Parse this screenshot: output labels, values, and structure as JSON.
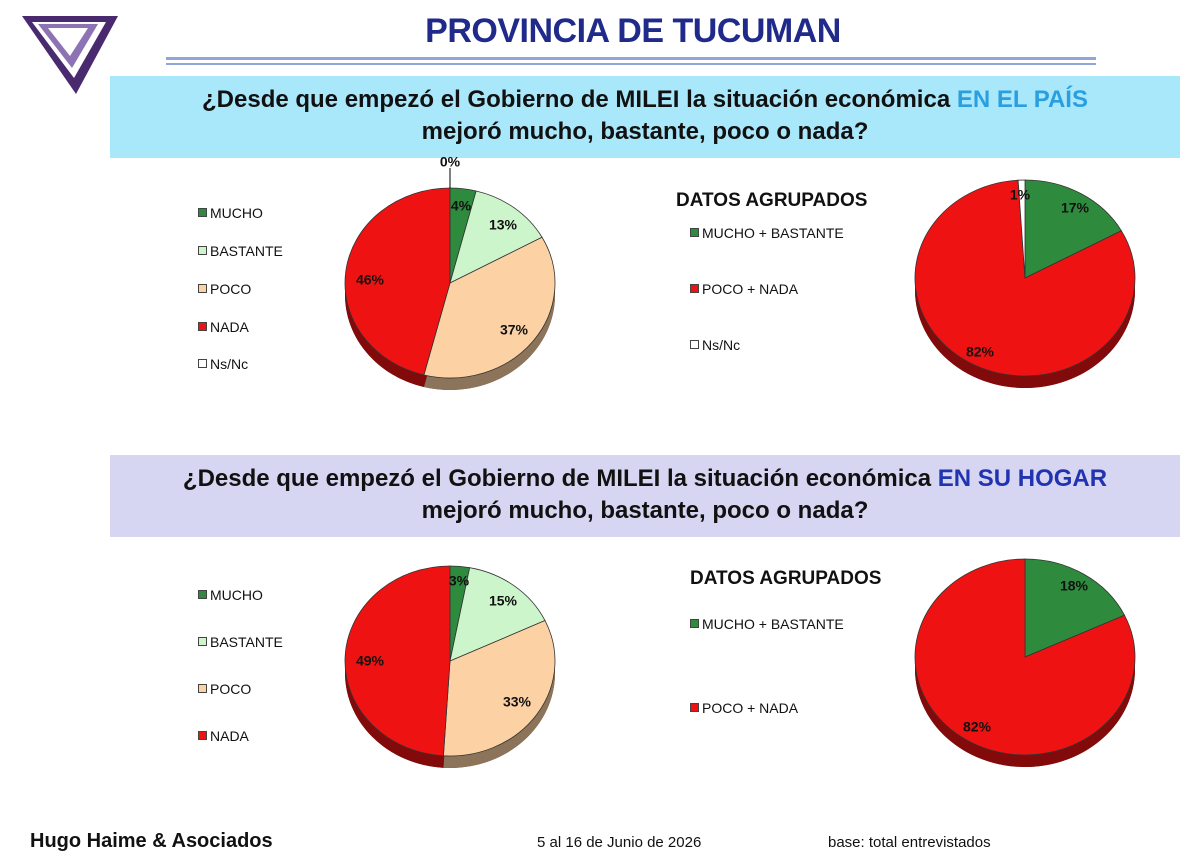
{
  "header": {
    "title": "PROVINCIA DE TUCUMAN"
  },
  "question1": {
    "text_before": "¿Desde que empezó el Gobierno de MILEI la situación económica ",
    "highlight": "EN EL PAÍS",
    "line2": "mejoró mucho, bastante, poco o nada?"
  },
  "question2": {
    "text_before": "¿Desde que empezó el Gobierno de MILEI la situación económica ",
    "highlight": "EN SU HOGAR",
    "line2": "mejoró mucho, bastante, poco o nada?"
  },
  "grouped_label": "DATOS AGRUPADOS",
  "footer": {
    "company": "Hugo Haime & Asociados",
    "dates": "5 al 16 de Junio de 2026",
    "base": "base: total entrevistados"
  },
  "colors": {
    "mucho": "#2e8b3e",
    "bastante": "#ccf5cc",
    "poco": "#fcd2a4",
    "nada": "#ef1212",
    "nsnc": "#ffffff",
    "title": "#1f2a8a"
  },
  "chart_data": [
    {
      "type": "pie",
      "title": "",
      "categories": [
        "MUCHO",
        "BASTANTE",
        "POCO",
        "NADA",
        "Ns/Nc"
      ],
      "values": [
        4,
        13,
        37,
        46,
        0
      ],
      "labels": [
        "4%",
        "13%",
        "37%",
        "46%",
        "0%"
      ]
    },
    {
      "type": "pie",
      "title": "DATOS AGRUPADOS",
      "categories": [
        "MUCHO + BASTANTE",
        "POCO + NADA",
        "Ns/Nc"
      ],
      "values": [
        17,
        82,
        1
      ],
      "labels": [
        "17%",
        "82%",
        "1%"
      ]
    },
    {
      "type": "pie",
      "title": "",
      "categories": [
        "MUCHO",
        "BASTANTE",
        "POCO",
        "NADA"
      ],
      "values": [
        3,
        15,
        33,
        49
      ],
      "labels": [
        "3%",
        "15%",
        "33%",
        "49%"
      ]
    },
    {
      "type": "pie",
      "title": "DATOS AGRUPADOS",
      "categories": [
        "MUCHO + BASTANTE",
        "POCO + NADA"
      ],
      "values": [
        18,
        82
      ],
      "labels": [
        "18%",
        "82%"
      ]
    }
  ]
}
